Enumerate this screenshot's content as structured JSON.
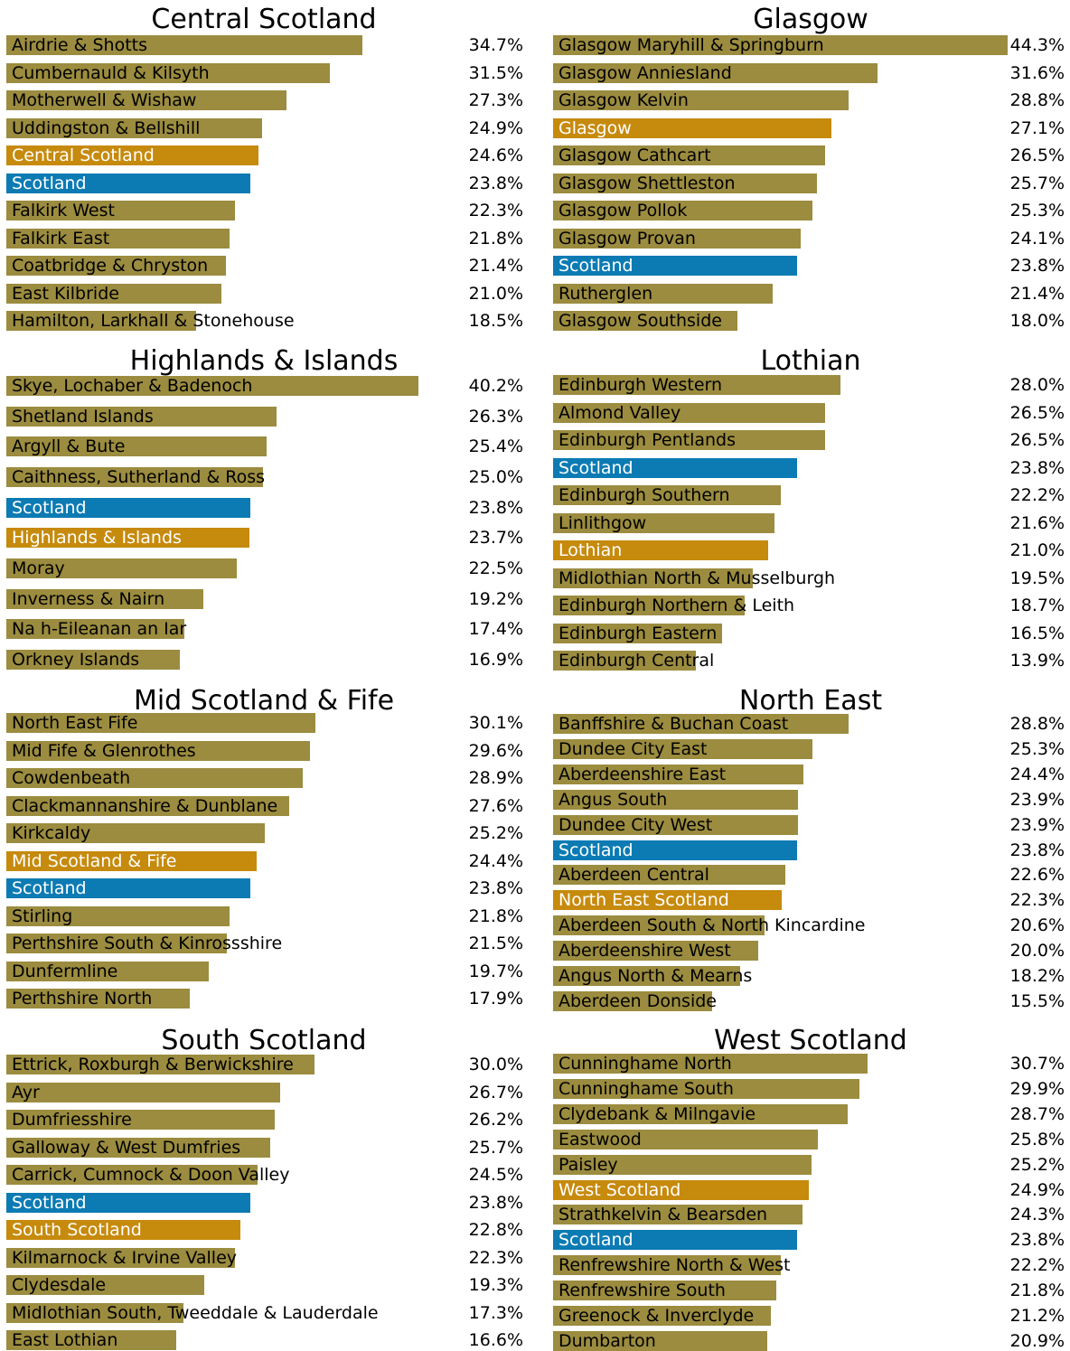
{
  "colors": {
    "constituency": "#9b8c3f",
    "region": "#c68a0d",
    "scotland": "#0c7bb3"
  },
  "chart_data": [
    {
      "type": "bar",
      "orientation": "horizontal",
      "title": "Central Scotland",
      "categories": [
        "Airdrie & Shotts",
        "Cumbernauld & Kilsyth",
        "Motherwell & Wishaw",
        "Uddingston & Bellshill",
        "Central Scotland",
        "Scotland",
        "Falkirk West",
        "Falkirk East",
        "Coatbridge & Chryston",
        "East Kilbride",
        "Hamilton, Larkhall & Stonehouse"
      ],
      "values": [
        34.7,
        31.5,
        27.3,
        24.9,
        24.6,
        23.8,
        22.3,
        21.8,
        21.4,
        21.0,
        18.5
      ],
      "labels": [
        "34.7%",
        "31.5%",
        "27.3%",
        "24.9%",
        "24.6%",
        "23.8%",
        "22.3%",
        "21.8%",
        "21.4%",
        "21.0%",
        "18.5%"
      ],
      "kinds": [
        "c",
        "c",
        "c",
        "c",
        "r",
        "s",
        "c",
        "c",
        "c",
        "c",
        "c"
      ]
    },
    {
      "type": "bar",
      "orientation": "horizontal",
      "title": "Glasgow",
      "categories": [
        "Glasgow Maryhill & Springburn",
        "Glasgow Anniesland",
        "Glasgow Kelvin",
        "Glasgow",
        "Glasgow Cathcart",
        "Glasgow Shettleston",
        "Glasgow Pollok",
        "Glasgow Provan",
        "Scotland",
        "Rutherglen",
        "Glasgow Southside"
      ],
      "values": [
        44.3,
        31.6,
        28.8,
        27.1,
        26.5,
        25.7,
        25.3,
        24.1,
        23.8,
        21.4,
        18.0
      ],
      "labels": [
        "44.3%",
        "31.6%",
        "28.8%",
        "27.1%",
        "26.5%",
        "25.7%",
        "25.3%",
        "24.1%",
        "23.8%",
        "21.4%",
        "18.0%"
      ],
      "kinds": [
        "c",
        "c",
        "c",
        "r",
        "c",
        "c",
        "c",
        "c",
        "s",
        "c",
        "c"
      ]
    },
    {
      "type": "bar",
      "orientation": "horizontal",
      "title": "Highlands & Islands",
      "categories": [
        "Skye, Lochaber & Badenoch",
        "Shetland Islands",
        "Argyll & Bute",
        "Caithness, Sutherland & Ross",
        "Scotland",
        "Highlands & Islands",
        "Moray",
        "Inverness & Nairn",
        "Na h-Eileanan an Iar",
        "Orkney Islands"
      ],
      "values": [
        40.2,
        26.3,
        25.4,
        25.0,
        23.8,
        23.7,
        22.5,
        19.2,
        17.4,
        16.9
      ],
      "labels": [
        "40.2%",
        "26.3%",
        "25.4%",
        "25.0%",
        "23.8%",
        "23.7%",
        "22.5%",
        "19.2%",
        "17.4%",
        "16.9%"
      ],
      "kinds": [
        "c",
        "c",
        "c",
        "c",
        "s",
        "r",
        "c",
        "c",
        "c",
        "c"
      ]
    },
    {
      "type": "bar",
      "orientation": "horizontal",
      "title": "Lothian",
      "categories": [
        "Edinburgh Western",
        "Almond Valley",
        "Edinburgh Pentlands",
        "Scotland",
        "Edinburgh Southern",
        "Linlithgow",
        "Lothian",
        "Midlothian North & Musselburgh",
        "Edinburgh Northern & Leith",
        "Edinburgh Eastern",
        "Edinburgh Central"
      ],
      "values": [
        28.0,
        26.5,
        26.5,
        23.8,
        22.2,
        21.6,
        21.0,
        19.5,
        18.7,
        16.5,
        13.9
      ],
      "labels": [
        "28.0%",
        "26.5%",
        "26.5%",
        "23.8%",
        "22.2%",
        "21.6%",
        "21.0%",
        "19.5%",
        "18.7%",
        "16.5%",
        "13.9%"
      ],
      "kinds": [
        "c",
        "c",
        "c",
        "s",
        "c",
        "c",
        "r",
        "c",
        "c",
        "c",
        "c"
      ]
    },
    {
      "type": "bar",
      "orientation": "horizontal",
      "title": "Mid Scotland & Fife",
      "categories": [
        "North East Fife",
        "Mid Fife & Glenrothes",
        "Cowdenbeath",
        "Clackmannanshire & Dunblane",
        "Kirkcaldy",
        "Mid Scotland & Fife",
        "Scotland",
        "Stirling",
        "Perthshire South & Kinrossshire",
        "Dunfermline",
        "Perthshire North"
      ],
      "values": [
        30.1,
        29.6,
        28.9,
        27.6,
        25.2,
        24.4,
        23.8,
        21.8,
        21.5,
        19.7,
        17.9
      ],
      "labels": [
        "30.1%",
        "29.6%",
        "28.9%",
        "27.6%",
        "25.2%",
        "24.4%",
        "23.8%",
        "21.8%",
        "21.5%",
        "19.7%",
        "17.9%"
      ],
      "kinds": [
        "c",
        "c",
        "c",
        "c",
        "c",
        "r",
        "s",
        "c",
        "c",
        "c",
        "c"
      ]
    },
    {
      "type": "bar",
      "orientation": "horizontal",
      "title": "North East",
      "categories": [
        "Banffshire & Buchan Coast",
        "Dundee City East",
        "Aberdeenshire East",
        "Angus South",
        "Dundee City West",
        "Scotland",
        "Aberdeen Central",
        "North East Scotland",
        "Aberdeen South & North Kincardine",
        "Aberdeenshire West",
        "Angus North & Mearns",
        "Aberdeen Donside"
      ],
      "values": [
        28.8,
        25.3,
        24.4,
        23.9,
        23.9,
        23.8,
        22.6,
        22.3,
        20.6,
        20.0,
        18.2,
        15.5
      ],
      "labels": [
        "28.8%",
        "25.3%",
        "24.4%",
        "23.9%",
        "23.9%",
        "23.8%",
        "22.6%",
        "22.3%",
        "20.6%",
        "20.0%",
        "18.2%",
        "15.5%"
      ],
      "kinds": [
        "c",
        "c",
        "c",
        "c",
        "c",
        "s",
        "c",
        "r",
        "c",
        "c",
        "c",
        "c"
      ]
    },
    {
      "type": "bar",
      "orientation": "horizontal",
      "title": "South Scotland",
      "categories": [
        "Ettrick, Roxburgh & Berwickshire",
        "Ayr",
        "Dumfriesshire",
        "Galloway & West Dumfries",
        "Carrick, Cumnock & Doon Valley",
        "Scotland",
        "South Scotland",
        "Kilmarnock & Irvine Valley",
        "Clydesdale",
        "Midlothian South, Tweeddale & Lauderdale",
        "East Lothian"
      ],
      "values": [
        30.0,
        26.7,
        26.2,
        25.7,
        24.5,
        23.8,
        22.8,
        22.3,
        19.3,
        17.3,
        16.6
      ],
      "labels": [
        "30.0%",
        "26.7%",
        "26.2%",
        "25.7%",
        "24.5%",
        "23.8%",
        "22.8%",
        "22.3%",
        "19.3%",
        "17.3%",
        "16.6%"
      ],
      "kinds": [
        "c",
        "c",
        "c",
        "c",
        "c",
        "s",
        "r",
        "c",
        "c",
        "c",
        "c"
      ]
    },
    {
      "type": "bar",
      "orientation": "horizontal",
      "title": "West Scotland",
      "categories": [
        "Cunninghame North",
        "Cunninghame South",
        "Clydebank & Milngavie",
        "Eastwood",
        "Paisley",
        "West Scotland",
        "Strathkelvin & Bearsden",
        "Scotland",
        "Renfrewshire North & West",
        "Renfrewshire South",
        "Greenock & Inverclyde",
        "Dumbarton"
      ],
      "values": [
        30.7,
        29.9,
        28.7,
        25.8,
        25.2,
        24.9,
        24.3,
        23.8,
        22.2,
        21.8,
        21.2,
        20.9
      ],
      "labels": [
        "30.7%",
        "29.9%",
        "28.7%",
        "25.8%",
        "25.2%",
        "24.9%",
        "24.3%",
        "23.8%",
        "22.2%",
        "21.8%",
        "21.2%",
        "20.9%"
      ],
      "kinds": [
        "c",
        "c",
        "c",
        "c",
        "c",
        "r",
        "c",
        "s",
        "c",
        "c",
        "c",
        "c"
      ]
    }
  ]
}
